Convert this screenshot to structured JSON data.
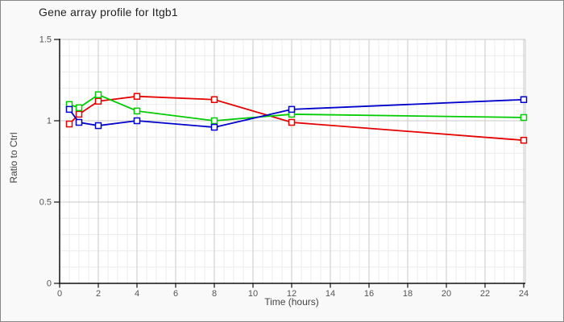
{
  "window": {
    "background": "#f9f9f9",
    "border_color": "#878787"
  },
  "chart_data": {
    "type": "line",
    "title": "Gene array profile for Itgb1",
    "xlabel": "Time (hours)",
    "ylabel": "Ratio to Ctrl",
    "x": [
      0.5,
      1,
      2,
      4,
      8,
      12,
      24
    ],
    "series": [
      {
        "name": "red-series",
        "color": "#e60000",
        "marker": "open-square",
        "values": [
          0.98,
          1.04,
          1.12,
          1.15,
          1.13,
          0.99,
          0.88
        ]
      },
      {
        "name": "green-series",
        "color": "#00cc00",
        "marker": "open-square",
        "values": [
          1.1,
          1.08,
          1.16,
          1.06,
          1.0,
          1.04,
          1.02
        ]
      },
      {
        "name": "blue-series",
        "color": "#0000cc",
        "marker": "open-square",
        "values": [
          1.07,
          0.99,
          0.97,
          1.0,
          0.96,
          1.07,
          1.13
        ]
      }
    ],
    "xlim": [
      0,
      24
    ],
    "ylim": [
      0,
      1.5
    ],
    "x_ticks": [
      0,
      2,
      4,
      6,
      8,
      10,
      12,
      14,
      16,
      18,
      20,
      22,
      24
    ],
    "y_ticks": [
      0,
      0.5,
      1,
      1.5
    ],
    "x_minor_step": 0.5,
    "y_minor_step": 0.1,
    "grid": true,
    "legend": "none"
  },
  "colors": {
    "axis": "#111111",
    "major_grid": "#c9c9c9",
    "minor_grid": "#ececec",
    "plot_background": "#ffffff",
    "tick_label": "#555555",
    "axis_label": "#444444",
    "title": "#222222"
  }
}
